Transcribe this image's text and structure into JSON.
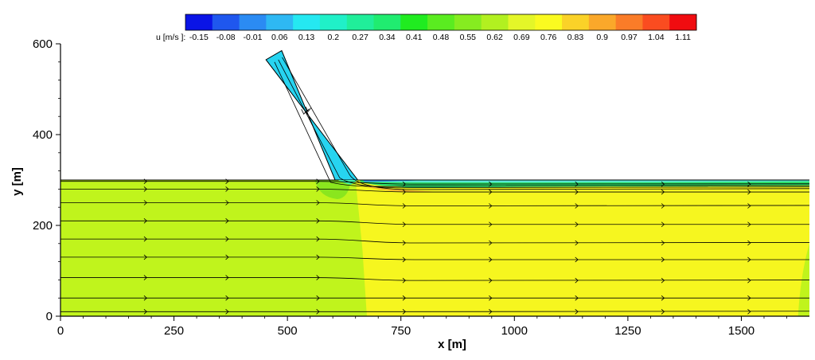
{
  "chart_data": {
    "type": "contour",
    "title": "",
    "xlabel": "x [m]",
    "ylabel": "y [m]",
    "xlim": [
      0,
      1650
    ],
    "ylim": [
      0,
      600
    ],
    "xticks": [
      0,
      250,
      500,
      750,
      1000,
      1250,
      1500
    ],
    "yticks": [
      0,
      200,
      400,
      600
    ],
    "xtick_labels": [
      "0",
      "250",
      "500",
      "750",
      "1000",
      "1250",
      "1500"
    ],
    "ytick_labels": [
      "0",
      "200",
      "400",
      "600"
    ],
    "colorbar": {
      "title": "u [m/s ]:",
      "levels": [
        "-0.15",
        "-0.08",
        "-0.01",
        "0.06",
        "0.13",
        "0.2",
        "0.27",
        "0.34",
        "0.41",
        "0.48",
        "0.55",
        "0.62",
        "0.69",
        "0.76",
        "0.83",
        "0.9",
        "0.97",
        "1.04",
        "1.11"
      ],
      "colors": [
        "#0a14e6",
        "#1f57ee",
        "#2b8bf3",
        "#2eb8f3",
        "#25e8f1",
        "#20f0c8",
        "#20ee9a",
        "#20ec70",
        "#20ec20",
        "#5aec20",
        "#86ec20",
        "#b2f020",
        "#e4f628",
        "#fafa20",
        "#fad228",
        "#faa82a",
        "#fa7c28",
        "#fa4c20",
        "#f00c10"
      ]
    },
    "domain": {
      "main_channel": {
        "x0": 0,
        "x1": 1650,
        "y0": 0,
        "y1": 300
      },
      "tributary_centerline": [
        [
          470,
          575
        ],
        [
          630,
          300
        ]
      ],
      "tributary_width": 40
    },
    "regions": [
      {
        "name": "upstream",
        "u": 0.72,
        "color": "#c0f41c"
      },
      {
        "name": "downstream",
        "u": 0.8,
        "color": "#f6f61f"
      },
      {
        "name": "tributary",
        "u": 0.12,
        "color": "#27d4f0"
      },
      {
        "name": "separation-zone",
        "u": 0.4,
        "color": "#2ee06a"
      }
    ],
    "streamlines_y": [
      10,
      40,
      85,
      130,
      170,
      210,
      250,
      280,
      297
    ]
  }
}
